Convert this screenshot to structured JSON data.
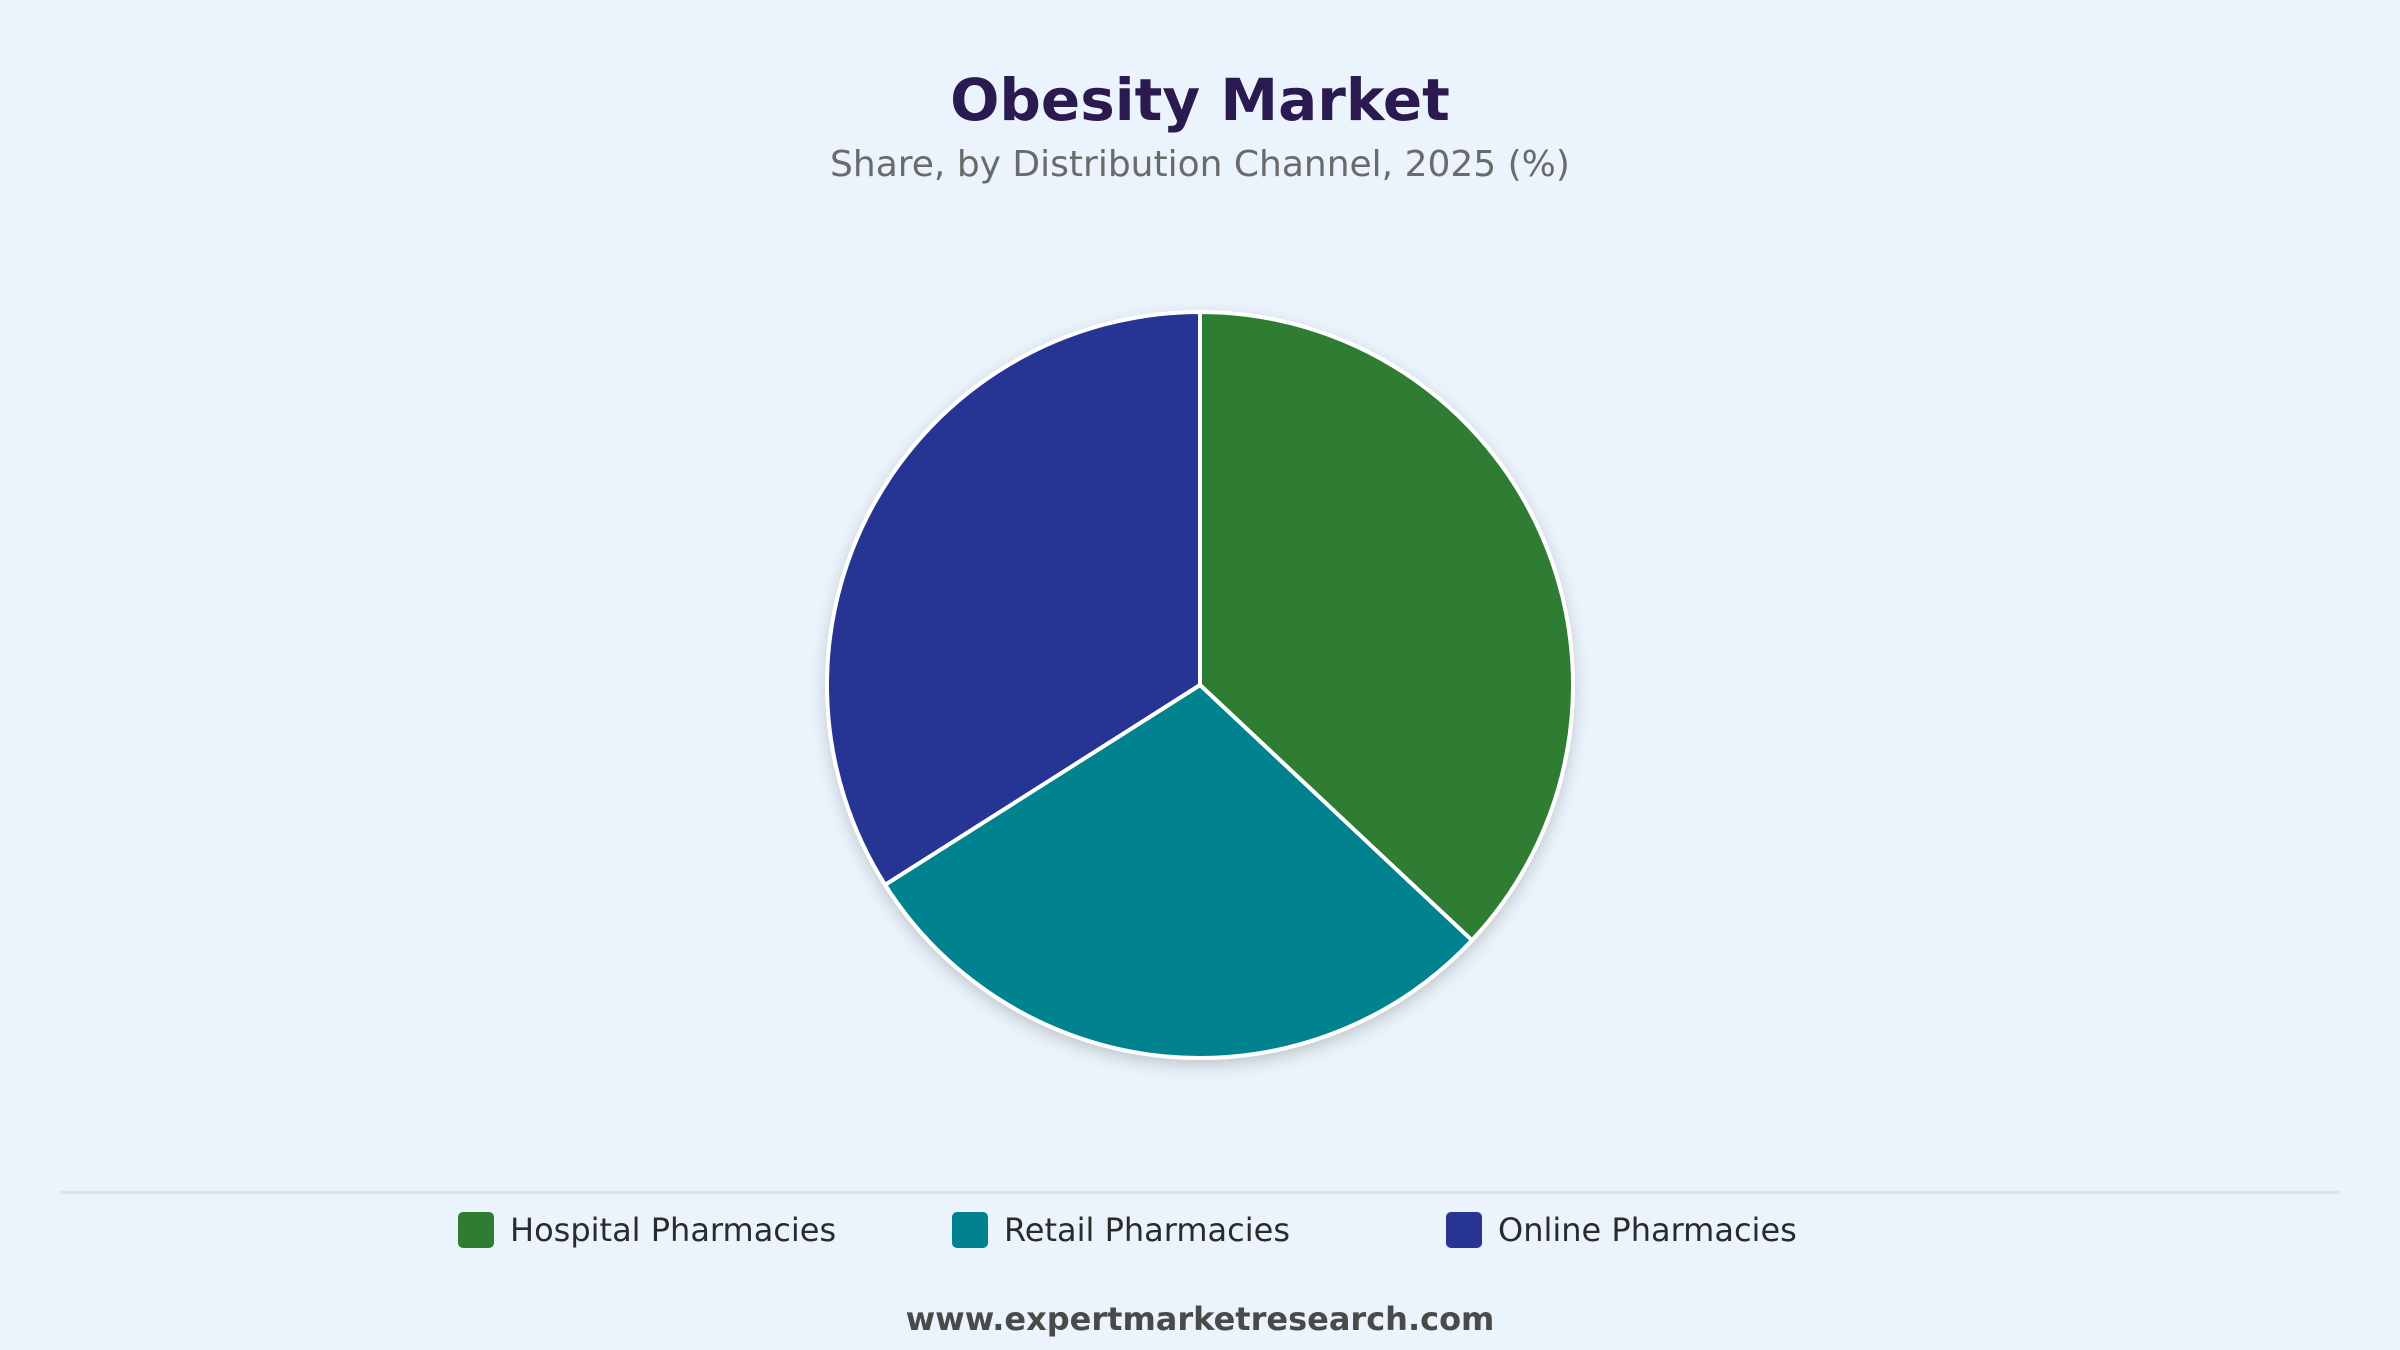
{
  "header": {
    "title": "Obesity Market",
    "subtitle": "Share, by Distribution Channel, 2025 (%)"
  },
  "chart_data": {
    "type": "pie",
    "categories": [
      "Hospital Pharmacies",
      "Retail Pharmacies",
      "Online Pharmacies"
    ],
    "values": [
      37,
      29,
      34
    ],
    "colors": [
      "#2e7d32",
      "#00838f",
      "#283593"
    ],
    "legend_position": "bottom",
    "start_angle": "12 o'clock, clockwise"
  },
  "footer": {
    "source": "www.expertmarketresearch.com"
  }
}
